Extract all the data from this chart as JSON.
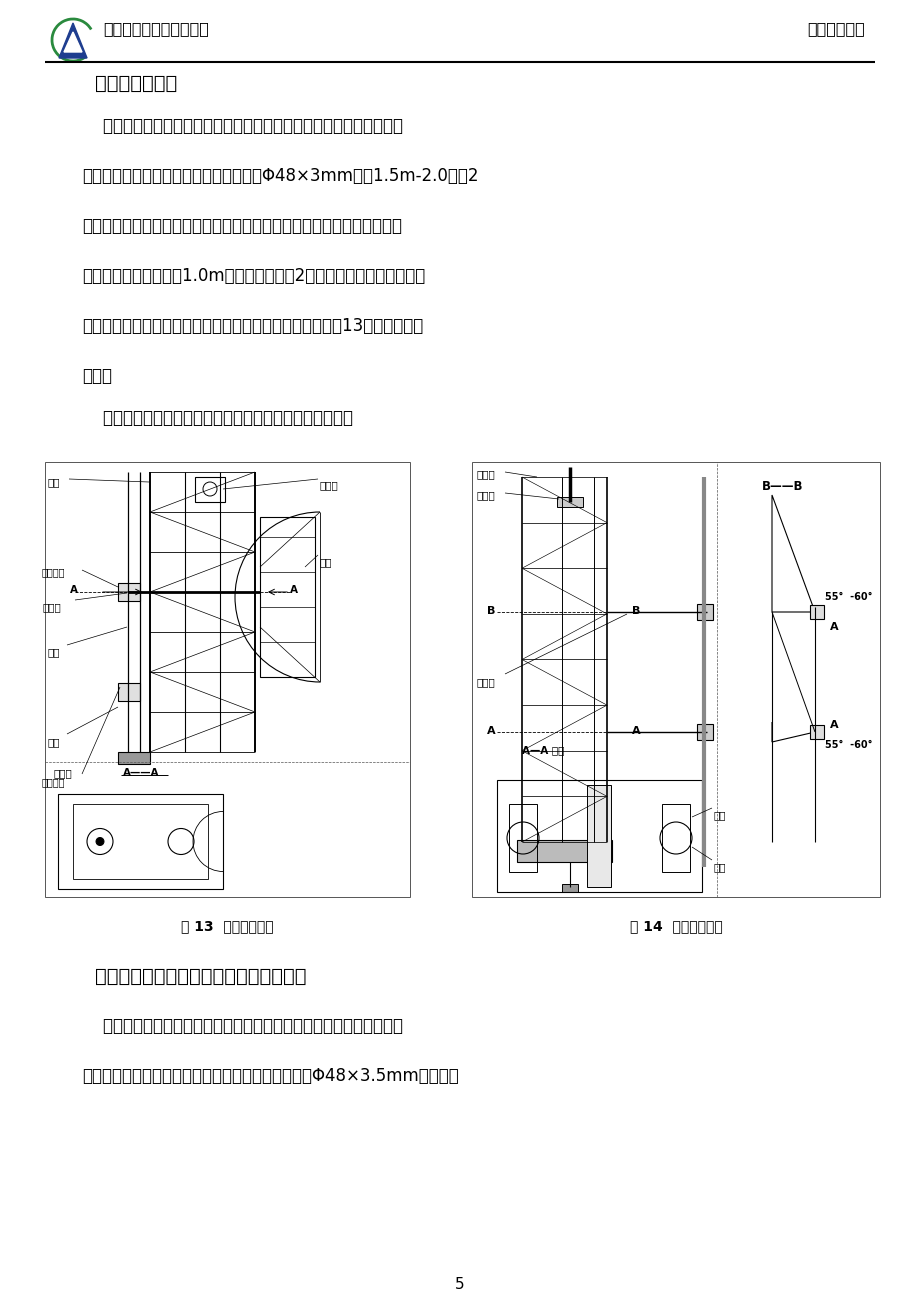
{
  "page_width": 9.2,
  "page_height": 13.02,
  "bg_color": "#ffffff",
  "header_left": "广厦建设集团安徽分公司",
  "header_right": "国检苑项目部",
  "page_number": "5",
  "section_title": "十、停层管安装",
  "body_lines": [
    "    因各施工建筑楼层高度设计不同，吊笼停靠位置也就不一样。装停车",
    "管时，把吊笼停靠在需要的楼层位置，取Φ48×3mm，长1.5m-2.0钢管2",
    "根，用扣件把它垂直扣在标准节内，给螺帽加预紧力，但不要固死，以备",
    "调整停车管。再取一根1.0m长钢管水平扣在2根立管上，同槽不要固死。",
    "调整停车管位置，使停车管贴在停车爪下方中间位置（如图13），然后固紧",
    "螺帽。"
  ],
  "note_line": "    注：严禁立管扣在标准节外，否则可能导致停层器损坏！",
  "section2_title": "十一、附墙架安装（附墙管由用户自备）",
  "body2_lines": [
    "    施工升降机安装高度超过最大独立高度，为保证架体的垂直、稳定和",
    "安全，必须安装附墙管。本系列升降机的附墙架采用Φ48×3.5mm钢管，用"
  ],
  "fig13_caption": "图 13  停层器安装图",
  "fig14_caption": "图 14  附墙架安装图",
  "text_color": "#000000",
  "line_color": "#000000",
  "label_立柱": "立柱",
  "label_钢管扣件": "钢管扣件",
  "label_停车管": "停车管",
  "label_立管": "立管",
  "label_法兰": "法兰",
  "label_钢管扣件2": "钢管扣件",
  "label_停层器": "停层器",
  "label_吊笼": "吊笼",
  "label_升降机": "升降机",
  "label_预埋管": "预埋管",
  "label_附墙管": "附墙管",
  "label_BB": "B——B",
  "label_AA放大": "A—A 放大",
  "label_扣件": "扣件",
  "label_扣管": "扣管",
  "label_55_60_1": "55°  -60°",
  "label_55_60_2": "55°  -60°",
  "label_停层器2": "停层器",
  "label_AA": "A——A"
}
